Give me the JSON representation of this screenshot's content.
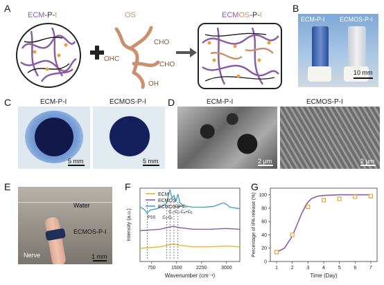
{
  "panels": {
    "A": {
      "letter": "A",
      "left_label": {
        "p1": "ECM",
        "p2": "-P-",
        "p3": "I"
      },
      "middle_label": "OS",
      "right_label": {
        "p1": "ECM",
        "p2": "OS",
        "p3": "-P-",
        "p4": "I"
      },
      "groups": {
        "ohc": "OHC",
        "cho1": "CHO",
        "oh": "OH",
        "cho2": "CHO"
      },
      "colors": {
        "ecm": "#8b5ca3",
        "os": "#c9916e",
        "i": "#e8a23b",
        "black": "#1a1a1a"
      }
    },
    "B": {
      "letter": "B",
      "label_left": "ECM-P-I",
      "label_right": "ECMOS-P-I",
      "scale": "10 mm"
    },
    "C": {
      "letter": "C",
      "label_left": "ECM-P-I",
      "label_right": "ECMOS-P-I",
      "scale_left": "5 mm",
      "scale_right": "5 mm"
    },
    "D": {
      "letter": "D",
      "label_left": "ECM-P-I",
      "label_right": "ECMOS-P-I",
      "scale_left": "2 μm",
      "scale_right": "2 μm"
    },
    "E": {
      "letter": "E",
      "water": "Water",
      "gel": "ECMOS-P-I",
      "nerve": "Nerve",
      "scale": "1 mm"
    },
    "F": {
      "letter": "F"
    },
    "G": {
      "letter": "G"
    }
  },
  "chart_data": [
    {
      "type": "line",
      "panel": "F",
      "xlabel": "Wavenumber (cm⁻¹)",
      "ylabel": "Intensity (a.u.)",
      "xticks": [
        750,
        1500,
        2250,
        3000
      ],
      "xlim": [
        400,
        3400
      ],
      "series": [
        {
          "name": "ECM",
          "color": "#e8b820",
          "x": [
            400,
            700,
            1000,
            1200,
            1400,
            1600,
            2000,
            2500,
            3000,
            3400
          ],
          "y": [
            0.18,
            0.19,
            0.2,
            0.22,
            0.24,
            0.22,
            0.2,
            0.2,
            0.21,
            0.2
          ]
        },
        {
          "name": "ECMOS",
          "color": "#8a5aa8",
          "x": [
            400,
            700,
            1000,
            1200,
            1400,
            1600,
            2000,
            2500,
            3000,
            3400
          ],
          "y": [
            0.42,
            0.43,
            0.44,
            0.46,
            0.48,
            0.46,
            0.44,
            0.44,
            0.45,
            0.44
          ]
        },
        {
          "name": "ECMOS-P-I",
          "color": "#4aa0c8",
          "x": [
            400,
            500,
            620,
            700,
            900,
            1100,
            1200,
            1300,
            1360,
            1420,
            1480,
            1540,
            1600,
            1700,
            2000,
            2300,
            2600,
            2900,
            3000,
            3100,
            3400
          ],
          "y": [
            0.74,
            0.72,
            0.66,
            0.7,
            0.72,
            0.76,
            0.8,
            0.98,
            0.86,
            0.9,
            0.82,
            0.92,
            0.8,
            0.76,
            0.74,
            0.74,
            0.75,
            0.8,
            0.78,
            0.74,
            0.72
          ]
        }
      ],
      "annotations": [
        {
          "text": "PSS",
          "x": 620
        },
        {
          "text": "Cₓ-Cₓ",
          "x": 1200
        },
        {
          "text": "C₀-C₀",
          "x": 1300
        },
        {
          "text": "-Cₐ=C₀",
          "x": 1420
        },
        {
          "text": "-Cₐ=Cᵦ",
          "x": 1540
        }
      ]
    },
    {
      "type": "scatter",
      "panel": "G",
      "xlabel": "Time (Day)",
      "ylabel": "Percentage of IPA release (%)",
      "xticks": [
        1,
        2,
        3,
        4,
        5,
        6,
        7
      ],
      "yticks": [
        0,
        20,
        40,
        60,
        80,
        100
      ],
      "xlim": [
        0.6,
        7.4
      ],
      "ylim": [
        0,
        110
      ],
      "points_color": "#e8a23b",
      "fit_color": "#8a5aa8",
      "x": [
        1,
        2,
        3,
        4,
        5,
        6,
        7
      ],
      "y": [
        14,
        40,
        82,
        92,
        94,
        97,
        98
      ],
      "fit_x": [
        1,
        1.5,
        2,
        2.3,
        2.6,
        2.9,
        3.2,
        3.6,
        4,
        5,
        6,
        7
      ],
      "fit_y": [
        14,
        20,
        38,
        55,
        72,
        86,
        94,
        98,
        99,
        100,
        100,
        100
      ]
    }
  ]
}
